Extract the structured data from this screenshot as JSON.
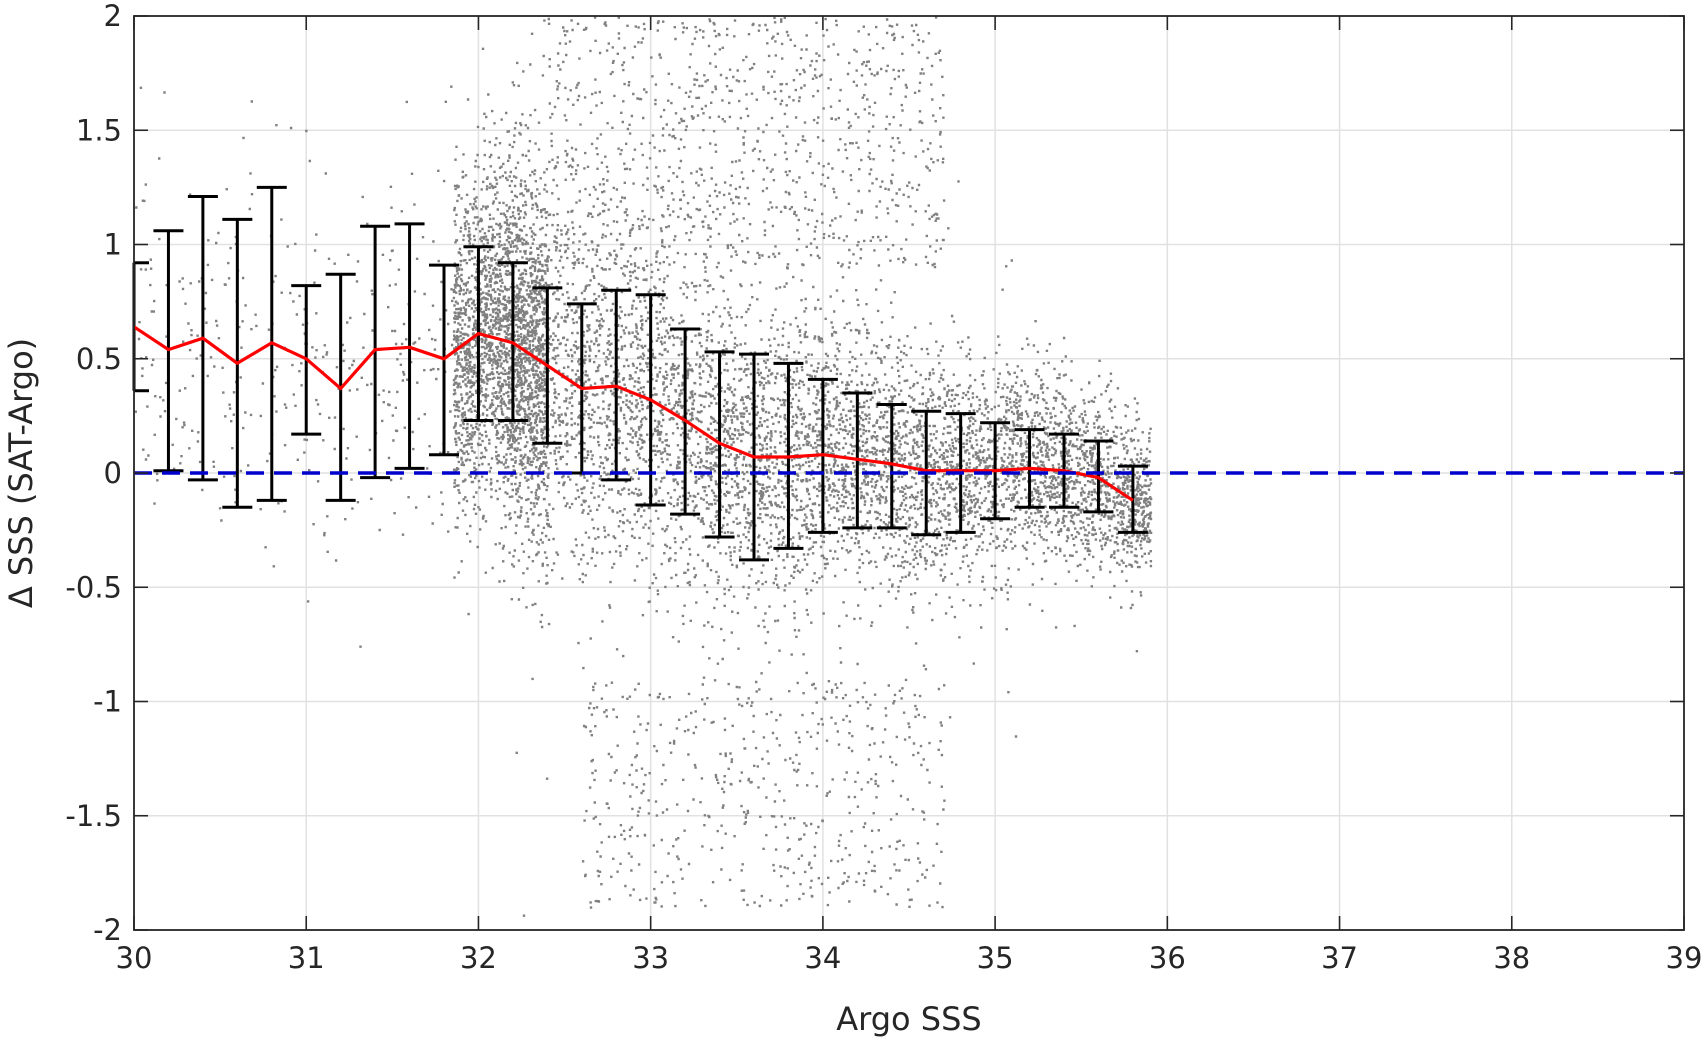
{
  "chart_data": {
    "type": "scatter",
    "title": "",
    "xlabel": "Argo SSS",
    "ylabel": "Δ SSS (SAT-Argo)",
    "xlim": [
      30,
      39
    ],
    "ylim": [
      -2,
      2
    ],
    "x_ticks": [
      "30",
      "31",
      "32",
      "33",
      "34",
      "35",
      "36",
      "37",
      "38",
      "39"
    ],
    "y_ticks": [
      "-2",
      "-1.5",
      "-1",
      "-0.5",
      "0",
      "0.5",
      "1",
      "1.5",
      "2"
    ],
    "grid": true,
    "legend": "none",
    "colors": {
      "scatter": "#808080",
      "mean_line": "#ff0000",
      "error_bars": "#000000",
      "zero_line": "#0000cc",
      "grid": "#e1e1e1",
      "axes": "#262626"
    },
    "series": [
      {
        "kind": "binned-mean-with-error-bars",
        "x": [
          30.0,
          30.2,
          30.4,
          30.6,
          30.8,
          31.0,
          31.2,
          31.4,
          31.6,
          31.8,
          32.0,
          32.2,
          32.4,
          32.6,
          32.8,
          33.0,
          33.2,
          33.4,
          33.6,
          33.8,
          34.0,
          34.2,
          34.4,
          34.6,
          34.8,
          35.0,
          35.2,
          35.4,
          35.6,
          35.8
        ],
        "mean": [
          0.64,
          0.54,
          0.59,
          0.48,
          0.57,
          0.5,
          0.37,
          0.54,
          0.55,
          0.5,
          0.61,
          0.57,
          0.47,
          0.37,
          0.38,
          0.32,
          0.23,
          0.13,
          0.07,
          0.07,
          0.08,
          0.06,
          0.04,
          0.01,
          0.01,
          0.01,
          0.02,
          0.01,
          -0.02,
          -0.12
        ],
        "upper": [
          0.92,
          1.06,
          1.21,
          1.11,
          1.25,
          0.82,
          0.87,
          1.08,
          1.09,
          0.91,
          0.99,
          0.92,
          0.81,
          0.74,
          0.8,
          0.78,
          0.63,
          0.53,
          0.52,
          0.48,
          0.41,
          0.35,
          0.3,
          0.27,
          0.26,
          0.22,
          0.19,
          0.17,
          0.14,
          0.03
        ],
        "lower": [
          0.36,
          0.01,
          -0.03,
          -0.15,
          -0.12,
          0.17,
          -0.12,
          -0.02,
          0.02,
          0.08,
          0.23,
          0.23,
          0.13,
          0.0,
          -0.03,
          -0.14,
          -0.18,
          -0.28,
          -0.38,
          -0.33,
          -0.26,
          -0.24,
          -0.24,
          -0.27,
          -0.26,
          -0.2,
          -0.15,
          -0.15,
          -0.17,
          -0.26
        ]
      },
      {
        "kind": "reference-line",
        "y": 0
      }
    ]
  }
}
